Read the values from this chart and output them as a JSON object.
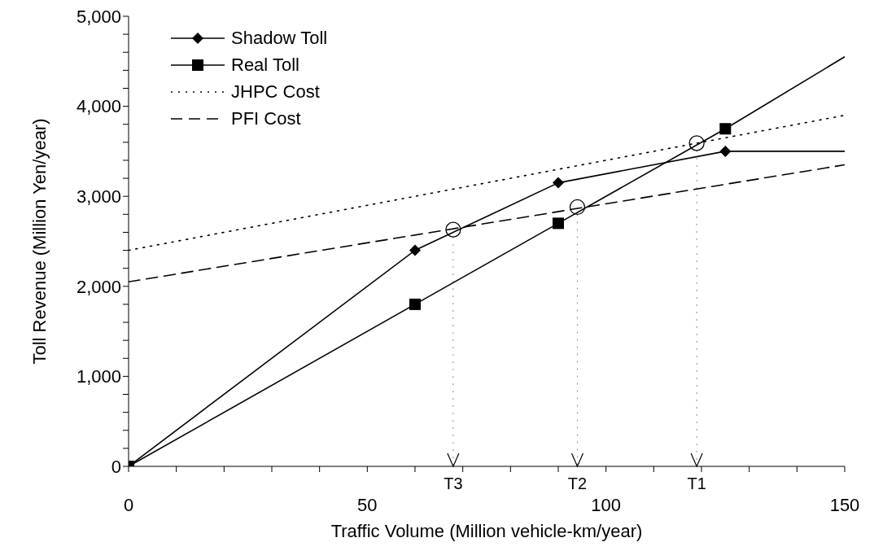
{
  "chart_data": {
    "type": "line",
    "xlabel": "Traffic Volume (Million vehicle-km/year)",
    "ylabel": "Toll Revenue (Million Yen/year)",
    "xlim": [
      0,
      150
    ],
    "xticks": [
      0,
      {
        "value": 10,
        "label": null
      },
      {
        "value": 20,
        "label": null
      },
      {
        "value": 30,
        "label": null
      },
      {
        "value": 40,
        "label": null
      },
      50,
      {
        "value": 60,
        "label": null
      },
      {
        "value": 70,
        "label": null
      },
      {
        "value": 80,
        "label": null
      },
      {
        "value": 90,
        "label": null
      },
      100,
      {
        "value": 110,
        "label": null
      },
      {
        "value": 120,
        "label": null
      },
      {
        "value": 130,
        "label": null
      },
      {
        "value": 140,
        "label": null
      },
      150
    ],
    "ylim": [
      0,
      5000
    ],
    "yticks": [
      0,
      {
        "value": 200,
        "label": null
      },
      {
        "value": 400,
        "label": null
      },
      {
        "value": 600,
        "label": null
      },
      {
        "value": 800,
        "label": null
      },
      {
        "value": 1000,
        "label": "1,000"
      },
      {
        "value": 1200,
        "label": null
      },
      {
        "value": 1400,
        "label": null
      },
      {
        "value": 1600,
        "label": null
      },
      {
        "value": 1800,
        "label": null
      },
      {
        "value": 2000,
        "label": "2,000"
      },
      {
        "value": 2200,
        "label": null
      },
      {
        "value": 2400,
        "label": null
      },
      {
        "value": 2600,
        "label": null
      },
      {
        "value": 2800,
        "label": null
      },
      {
        "value": 3000,
        "label": "3,000"
      },
      {
        "value": 3200,
        "label": null
      },
      {
        "value": 3400,
        "label": null
      },
      {
        "value": 3600,
        "label": null
      },
      {
        "value": 3800,
        "label": null
      },
      {
        "value": 4000,
        "label": "4,000"
      },
      {
        "value": 4200,
        "label": null
      },
      {
        "value": 4400,
        "label": null
      },
      {
        "value": 4600,
        "label": null
      },
      {
        "value": 4800,
        "label": null
      },
      {
        "value": 5000,
        "label": "5,000"
      }
    ],
    "legend": "top left",
    "series": [
      {
        "name": "Shadow Toll",
        "color": "#000000",
        "marker": "diamond",
        "line_style": "solid",
        "x": [
          60,
          90,
          125
        ],
        "values": [
          2400,
          3150,
          3500
        ]
      },
      {
        "color": "#000000",
        "line_style": "solid",
        "x": [
          0,
          60
        ],
        "values": [
          0,
          2400
        ]
      },
      {
        "name": "Real Toll",
        "color": "#000000",
        "marker": "square",
        "line_style": "solid",
        "x": [
          0,
          60,
          90,
          125
        ],
        "values": [
          0,
          1800,
          2700,
          3750
        ]
      },
      {
        "name": "JHPC Cost",
        "color": "#000000",
        "marker": "none",
        "line_style": "dotted",
        "x": [
          0,
          150
        ],
        "values": [
          2400,
          3900
        ]
      },
      {
        "name": "PFI Cost",
        "color": "#000000",
        "marker": "none",
        "line_style": "dashed",
        "x": [
          0,
          150
        ],
        "values": [
          2050,
          3350
        ]
      },
      {
        "color": "#000000",
        "marker": "none",
        "line_style": "solid",
        "x": [
          125,
          150
        ],
        "values": [
          3500,
          3500
        ]
      },
      {
        "color": "#000000",
        "marker": "none",
        "line_style": "solid",
        "x": [
          125,
          150
        ],
        "values": [
          3750,
          4550
        ]
      },
      {
        "type": "scatter",
        "color": "#000000",
        "marker": "circle",
        "x": [
          68,
          94,
          119
        ],
        "values": [
          2630,
          2880,
          3590
        ]
      }
    ],
    "ref_lines": [
      {
        "axis": "x",
        "value": 68,
        "label": "T3",
        "line_style": "dotted",
        "color": "#888888"
      },
      {
        "axis": "x",
        "value": 94,
        "label": "T2",
        "line_style": "dotted",
        "color": "#888888"
      },
      {
        "axis": "x",
        "value": 119,
        "label": "T1",
        "line_style": "dotted",
        "color": "#888888"
      }
    ]
  }
}
